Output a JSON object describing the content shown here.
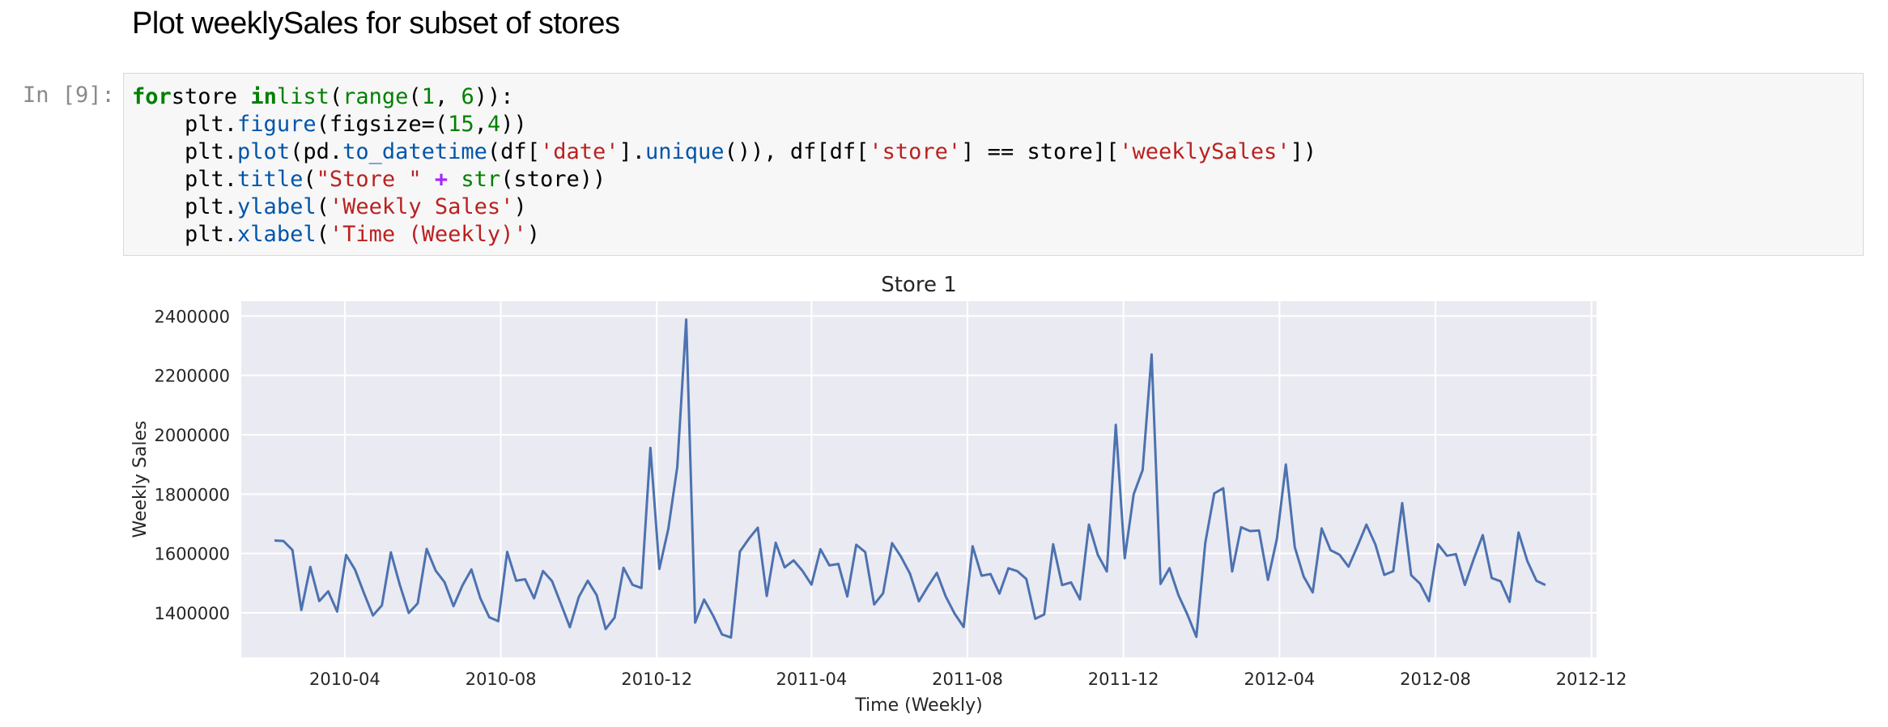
{
  "markdown": {
    "heading": "Plot weeklySales for subset of stores"
  },
  "cell": {
    "prompt": "In [9]:",
    "code": [
      [
        [
          "kw",
          "for"
        ],
        [
          "",
          "store "
        ],
        [
          "kw",
          "in"
        ],
        [
          "",
          ""
        ],
        [
          "bi",
          "list"
        ],
        [
          "",
          "("
        ],
        [
          "bi",
          "range"
        ],
        [
          "",
          "("
        ],
        [
          "nm",
          "1"
        ],
        [
          "",
          ", "
        ],
        [
          "nm",
          "6"
        ],
        [
          "",
          "))"
        ],
        [
          "",
          ""
        ],
        [
          "",
          ":"
        ]
      ],
      [
        [
          "",
          "    plt."
        ],
        [
          "fn",
          "figure"
        ],
        [
          "",
          "(figsize=("
        ],
        [
          "nm",
          "15"
        ],
        [
          "",
          ","
        ],
        [
          "nm",
          "4"
        ],
        [
          "",
          "))"
        ]
      ],
      [
        [
          "",
          "    plt."
        ],
        [
          "fn",
          "plot"
        ],
        [
          "",
          "(pd."
        ],
        [
          "fn",
          "to_datetime"
        ],
        [
          "",
          "(df["
        ],
        [
          "st",
          "'date'"
        ],
        [
          "",
          "]."
        ],
        [
          "fn",
          "unique"
        ],
        [
          "",
          "()), df[df["
        ],
        [
          "st",
          "'store'"
        ],
        [
          "",
          "] == store]["
        ],
        [
          "st",
          "'weeklySales'"
        ],
        [
          "",
          "])"
        ]
      ],
      [
        [
          "",
          "    plt."
        ],
        [
          "fn",
          "title"
        ],
        [
          "",
          "("
        ],
        [
          "st",
          "\"Store \""
        ],
        [
          "",
          ""
        ],
        [
          "op",
          " + "
        ],
        [
          "bi",
          "str"
        ],
        [
          "",
          "(store))"
        ]
      ],
      [
        [
          "",
          "    plt."
        ],
        [
          "fn",
          "ylabel"
        ],
        [
          "",
          "("
        ],
        [
          "st",
          "'Weekly Sales'"
        ],
        [
          "",
          ")"
        ]
      ],
      [
        [
          "",
          "    plt."
        ],
        [
          "fn",
          "xlabel"
        ],
        [
          "",
          "("
        ],
        [
          "st",
          "'Time (Weekly)'"
        ],
        [
          "",
          ")"
        ]
      ]
    ]
  },
  "colors": {
    "plot_bg": "#eaeaf2",
    "line": "#4c72b0",
    "grid": "#ffffff"
  },
  "chart_data": {
    "type": "line",
    "title": "Store 1",
    "xlabel": "Time (Weekly)",
    "ylabel": "Weekly Sales",
    "x_start": "2010-02-05",
    "x_step": "weekly",
    "xlim": [
      "2010-01-10",
      "2012-12-05"
    ],
    "ylim": [
      1250000,
      2450000
    ],
    "grid": true,
    "xtick_labels": [
      "2010-04",
      "2010-08",
      "2010-12",
      "2011-04",
      "2011-08",
      "2011-12",
      "2012-04",
      "2012-08",
      "2012-12"
    ],
    "ytick_labels": [
      "1400000",
      "1600000",
      "1800000",
      "2000000",
      "2200000",
      "2400000"
    ],
    "series": [
      {
        "values": [
          1643690,
          1641957,
          1611968,
          1409728,
          1554807,
          1439541,
          1472515,
          1404430,
          1594968,
          1545419,
          1466058,
          1391256,
          1425100,
          1603955,
          1494251,
          1399662,
          1432070,
          1615525,
          1542561,
          1503284,
          1422712,
          1492418,
          1546074,
          1448938,
          1385065,
          1371987,
          1605491,
          1508238,
          1513080,
          1449142,
          1540874,
          1507460,
          1430378,
          1351791,
          1453329,
          1508240,
          1459409,
          1345454,
          1384209,
          1551659,
          1494479,
          1483784,
          1955624,
          1548034,
          1682614,
          1891034,
          2387950,
          1367320,
          1444712,
          1391013,
          1327405,
          1316899,
          1606629,
          1649614,
          1686843,
          1456801,
          1636340,
          1553191,
          1576818,
          1541102,
          1495064,
          1614259,
          1559889,
          1564820,
          1455090,
          1629392,
          1604775,
          1428219,
          1466046,
          1635078,
          1588948,
          1532308,
          1438830,
          1488538,
          1534849,
          1455119,
          1396927,
          1352220,
          1624383,
          1525147,
          1530761,
          1464693,
          1550229,
          1540471,
          1514259,
          1380021,
          1394561,
          1630989,
          1493525,
          1502562,
          1445249,
          1697230,
          1594938,
          1539483,
          2033320,
          1584084,
          1799682,
          1881177,
          2270189,
          1497463,
          1550370,
          1459601,
          1394394,
          1319326,
          1636339,
          1802477,
          1819870,
          1539388,
          1688421,
          1675431,
          1677472,
          1511068,
          1649604,
          1899677,
          1621031,
          1521578,
          1468928,
          1684519,
          1611096,
          1595902,
          1555445,
          1624478,
          1697231,
          1630608,
          1527846,
          1540422,
          1769854,
          1527015,
          1497955,
          1439124,
          1631136,
          1592409,
          1597868,
          1494122,
          1582083,
          1661767,
          1517429,
          1506127,
          1437059,
          1670785,
          1573073,
          1508069,
          1493659
        ]
      }
    ]
  }
}
